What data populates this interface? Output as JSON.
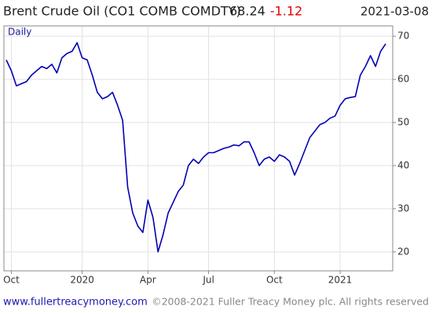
{
  "chart_data": {
    "type": "line",
    "title": "Brent Crude Oil  (CO1 COMB COMDTY)",
    "last": 68.24,
    "change": -1.12,
    "date": "2021-03-08",
    "frequency": "Daily",
    "footer_url": "www.fullertreacymoney.com",
    "footer_copyright": "©2008-2021 Fuller Treacy Money plc. All rights reserved",
    "categories": [
      null,
      "Oct",
      null,
      null,
      null,
      null,
      null,
      null,
      null,
      null,
      null,
      null,
      null,
      null,
      null,
      "2020",
      null,
      null,
      null,
      null,
      null,
      null,
      null,
      null,
      null,
      null,
      null,
      null,
      "Apr",
      null,
      null,
      null,
      null,
      null,
      null,
      null,
      null,
      null,
      null,
      null,
      "Jul",
      null,
      null,
      null,
      null,
      null,
      null,
      null,
      null,
      null,
      null,
      null,
      null,
      "Oct",
      null,
      null,
      null,
      null,
      null,
      null,
      null,
      null,
      null,
      null,
      null,
      null,
      "2021",
      null,
      null,
      null,
      null,
      null,
      null,
      null,
      null,
      null
    ],
    "series": [
      {
        "name": "CO1 COMB COMDTY",
        "color": "#0000b4",
        "values": [
          64.5,
          62,
          58.5,
          59,
          59.5,
          61,
          62,
          63,
          62.5,
          63.5,
          61.5,
          65,
          66,
          66.5,
          68.5,
          65,
          64.5,
          61,
          57,
          55.5,
          56,
          57,
          54,
          50.5,
          35,
          29,
          26,
          24.5,
          32,
          28,
          20,
          24,
          29,
          31.5,
          34,
          35.5,
          40,
          41.5,
          40.5,
          42,
          43,
          43,
          43.5,
          44,
          44.3,
          44.8,
          44.6,
          45.5,
          45.5,
          43,
          40,
          41.5,
          42,
          41,
          42.5,
          42,
          41,
          37.8,
          40.5,
          43.5,
          46.5,
          48,
          49.5,
          50,
          51,
          51.5,
          54,
          55.5,
          55.8,
          56,
          61,
          63,
          65.5,
          63,
          66.5,
          68.24
        ]
      }
    ],
    "ylim": [
      15.6,
      72.4
    ],
    "yticks": [
      20,
      30,
      40,
      50,
      60,
      70
    ],
    "grid": true
  }
}
